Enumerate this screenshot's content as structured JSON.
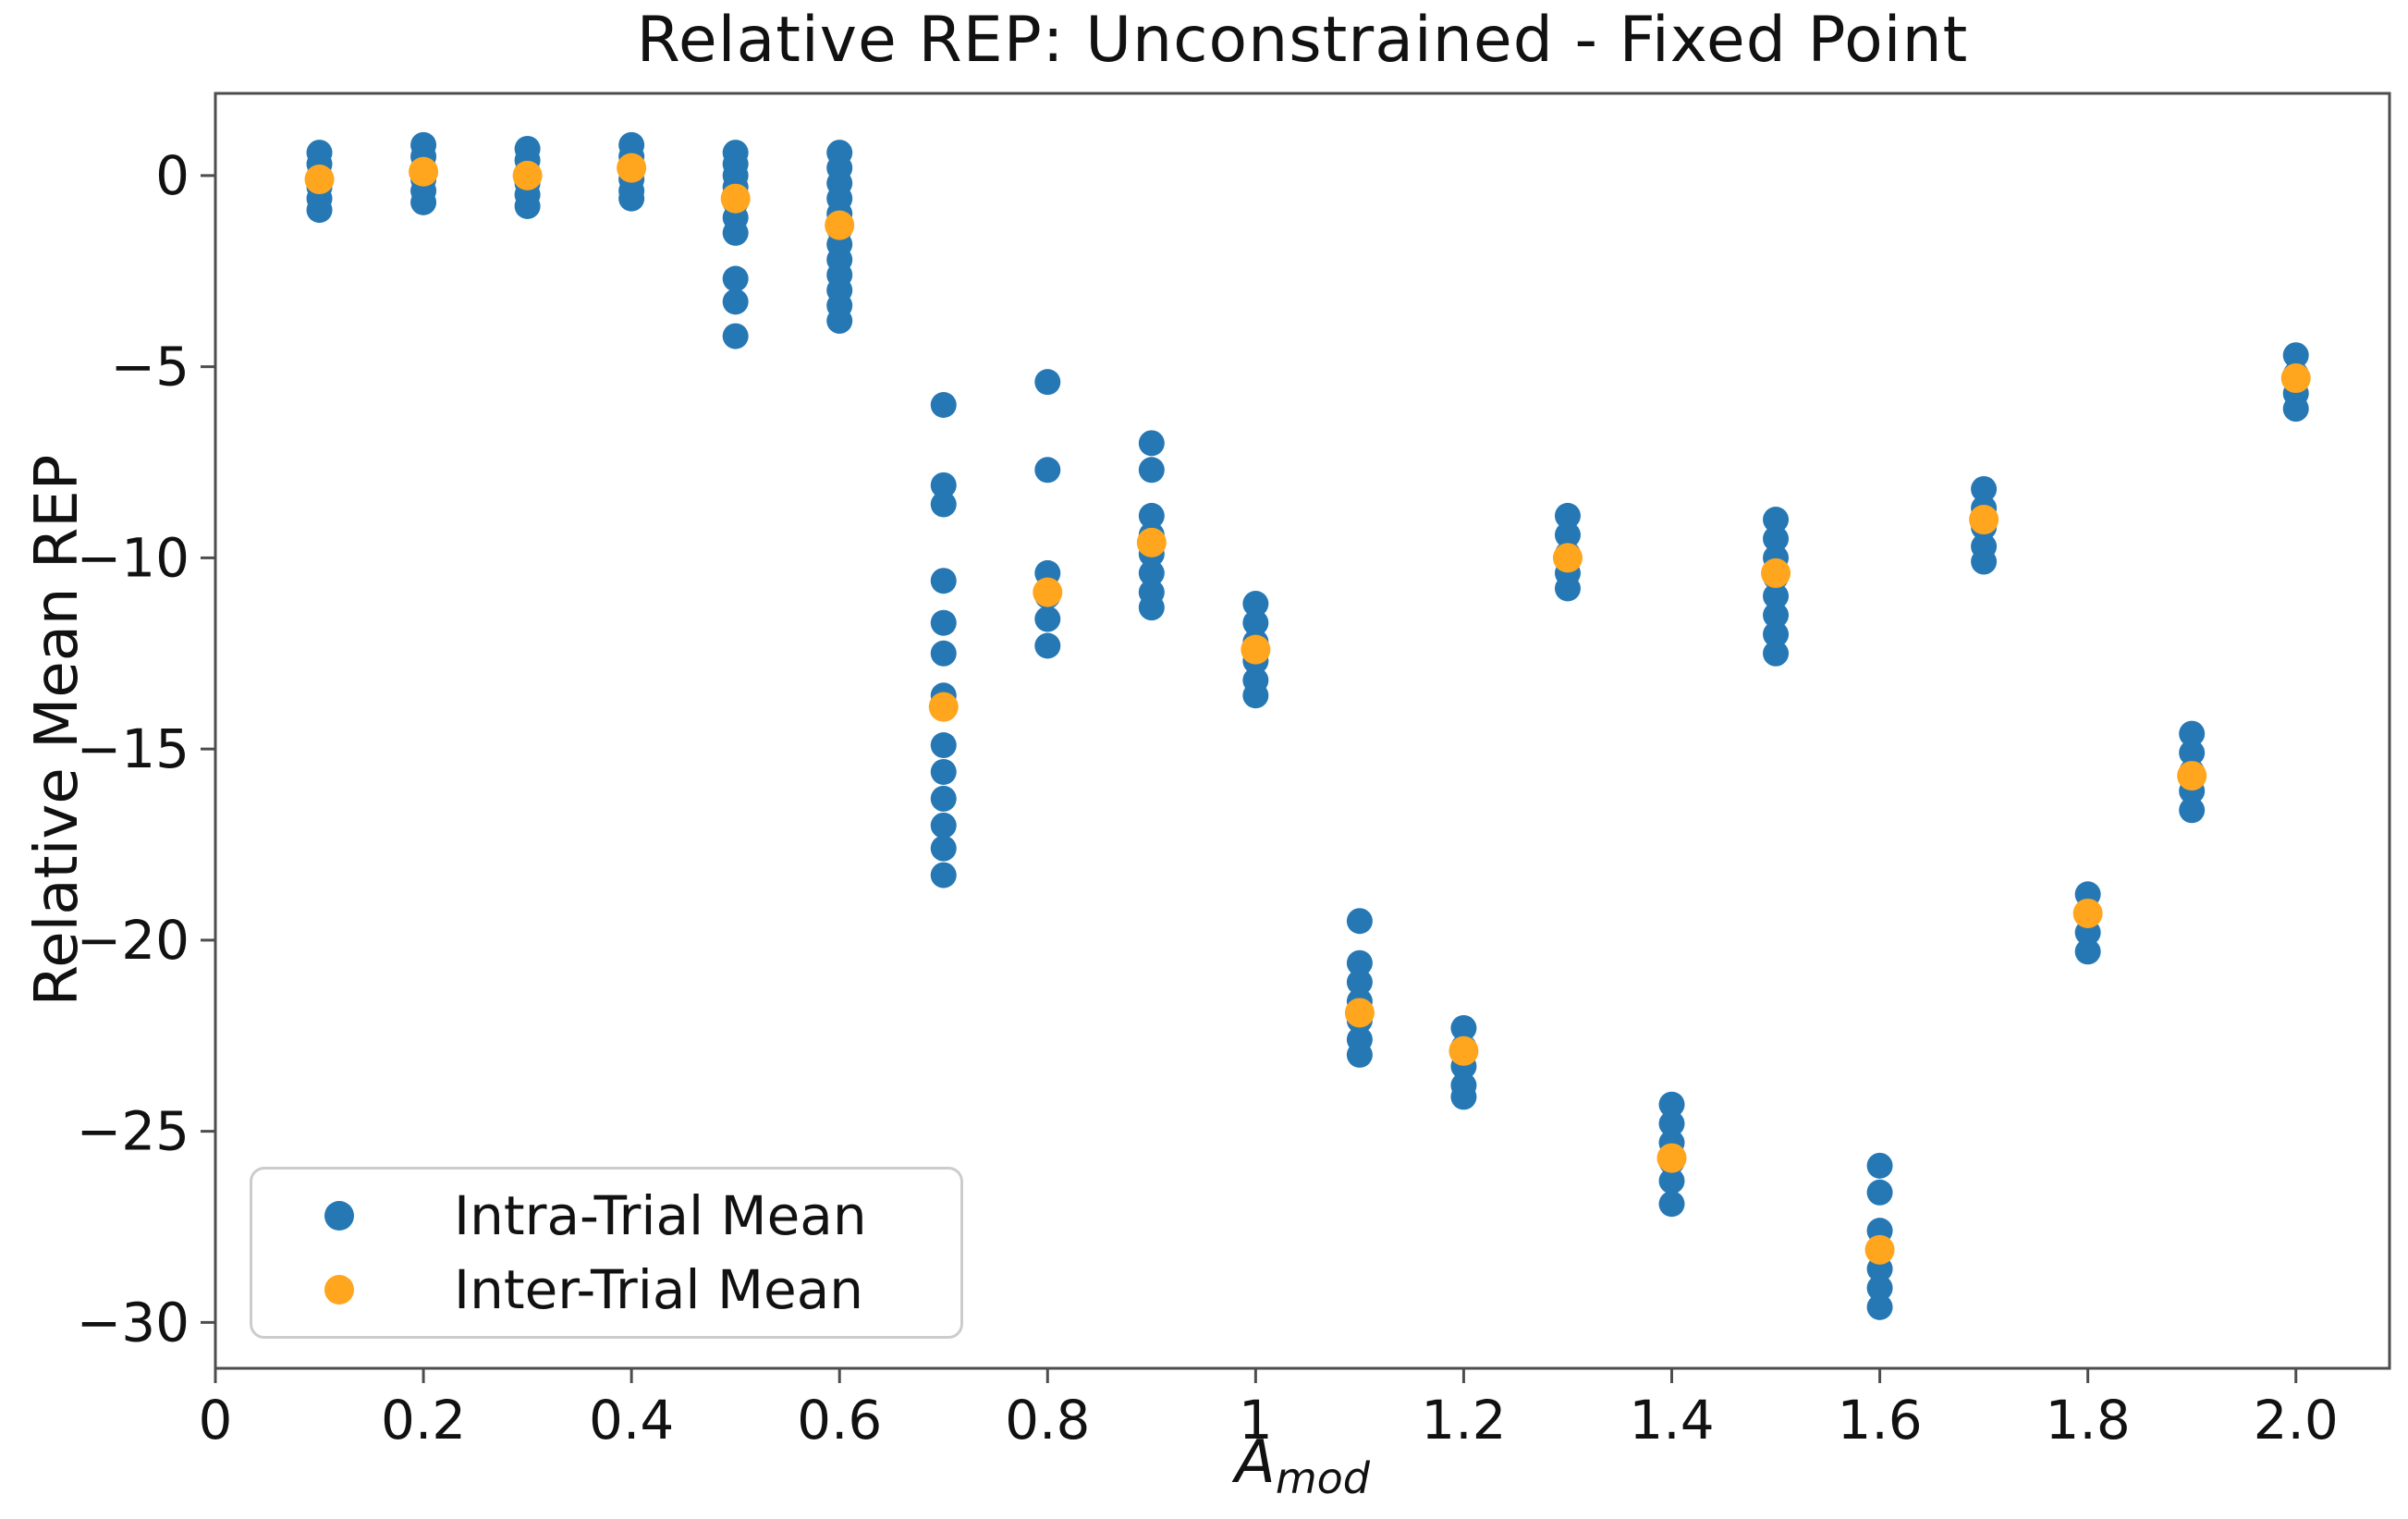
{
  "title": "Relative REP: Unconstrained - Fixed Point",
  "axes": {
    "ylabel": "Relative Mean REP",
    "xlabel_base": "A",
    "xlabel_sub": "mod"
  },
  "legend": {
    "intra_label": "Intra-Trial Mean",
    "inter_label": "Inter-Trial Mean"
  },
  "chart_data": {
    "type": "scatter",
    "title": "Relative REP: Unconstrained - Fixed Point",
    "xlabel": "A_mod",
    "ylabel": "Relative Mean REP",
    "xlim": [
      0,
      2.09
    ],
    "ylim": [
      -31.2,
      2.15
    ],
    "grid": false,
    "legend_position": "lower left",
    "x_tick_values": [
      0,
      0.2,
      0.4,
      0.6,
      0.8,
      1.0,
      1.2,
      1.4,
      1.6,
      1.8,
      2.0
    ],
    "x_tick_labels": [
      "0",
      "0.2",
      "0.4",
      "0.6",
      "0.8",
      "1",
      "1.2",
      "1.4",
      "1.6",
      "1.8",
      "2.0"
    ],
    "y_tick_values": [
      0,
      -5,
      -10,
      -15,
      -20,
      -25,
      -30
    ],
    "y_tick_labels": [
      "0",
      "−5",
      "−10",
      "−15",
      "−20",
      "−25",
      "−30"
    ],
    "colors": {
      "intra": "#2678b5",
      "inter": "#ffa51e",
      "axis": "#4d4d4d",
      "tick_text": "#111111"
    },
    "marker": {
      "intra_radius": 14,
      "inter_radius": 16
    },
    "series": [
      {
        "name": "Intra-Trial Mean",
        "role": "intra"
      },
      {
        "name": "Inter-Trial Mean",
        "role": "inter"
      }
    ],
    "points": {
      "x": [
        0.1,
        0.2,
        0.3,
        0.4,
        0.5,
        0.6,
        0.7,
        0.8,
        0.9,
        1.0,
        1.1,
        1.2,
        1.3,
        1.4,
        1.5,
        1.6,
        1.7,
        1.8,
        1.9,
        2.0
      ],
      "intra": [
        [
          0.6,
          0.3,
          0.0,
          -0.3,
          -0.6,
          -0.9
        ],
        [
          0.8,
          0.5,
          0.2,
          -0.1,
          -0.4,
          -0.7
        ],
        [
          0.7,
          0.4,
          0.1,
          -0.2,
          -0.5,
          -0.8
        ],
        [
          0.8,
          0.5,
          0.2,
          -0.1,
          -0.4,
          -0.6
        ],
        [
          0.6,
          0.3,
          0.0,
          -0.3,
          -0.7,
          -1.1,
          -1.5,
          -2.7,
          -3.3,
          -4.2
        ],
        [
          0.6,
          0.2,
          -0.2,
          -0.6,
          -1.0,
          -1.4,
          -1.8,
          -2.2,
          -2.6,
          -3.0,
          -3.4,
          -3.8
        ],
        [
          -6.0,
          -8.1,
          -8.6,
          -10.6,
          -11.7,
          -12.5,
          -13.6,
          -14.9,
          -15.6,
          -16.3,
          -17.0,
          -17.6,
          -18.3
        ],
        [
          -5.4,
          -7.7,
          -10.4,
          -11.0,
          -11.6,
          -12.3
        ],
        [
          -7.0,
          -7.7,
          -8.9,
          -9.4,
          -9.9,
          -10.4,
          -10.9,
          -11.3
        ],
        [
          -11.2,
          -11.7,
          -12.2,
          -12.7,
          -13.2,
          -13.6
        ],
        [
          -19.5,
          -20.6,
          -21.1,
          -21.6,
          -22.1,
          -22.6,
          -23.0
        ],
        [
          -22.3,
          -22.8,
          -23.3,
          -23.8,
          -24.1
        ],
        [
          -8.9,
          -9.4,
          -9.9,
          -10.4,
          -10.8
        ],
        [
          -24.3,
          -24.8,
          -25.3,
          -25.8,
          -26.3,
          -26.9
        ],
        [
          -9.0,
          -9.5,
          -10.0,
          -10.5,
          -11.0,
          -11.5,
          -12.0,
          -12.5
        ],
        [
          -25.9,
          -26.6,
          -27.6,
          -28.1,
          -28.6,
          -29.1,
          -29.6
        ],
        [
          -8.2,
          -8.7,
          -9.2,
          -9.7,
          -10.1
        ],
        [
          -18.8,
          -19.3,
          -19.8,
          -20.3
        ],
        [
          -14.6,
          -15.1,
          -15.6,
          -16.1,
          -16.6
        ],
        [
          -4.7,
          -5.2,
          -5.7,
          -6.1
        ]
      ],
      "inter": [
        -0.1,
        0.1,
        0.0,
        0.2,
        -0.6,
        -1.3,
        -13.9,
        -10.9,
        -9.6,
        -12.4,
        -21.9,
        -22.9,
        -10.0,
        -25.7,
        -10.4,
        -28.1,
        -9.0,
        -19.3,
        -15.7,
        -5.3
      ]
    },
    "layout": {
      "plot_left": 233,
      "plot_top": 101,
      "plot_right": 2585,
      "plot_bottom": 1480,
      "tick_length": 16,
      "tick_font": 58
    }
  }
}
